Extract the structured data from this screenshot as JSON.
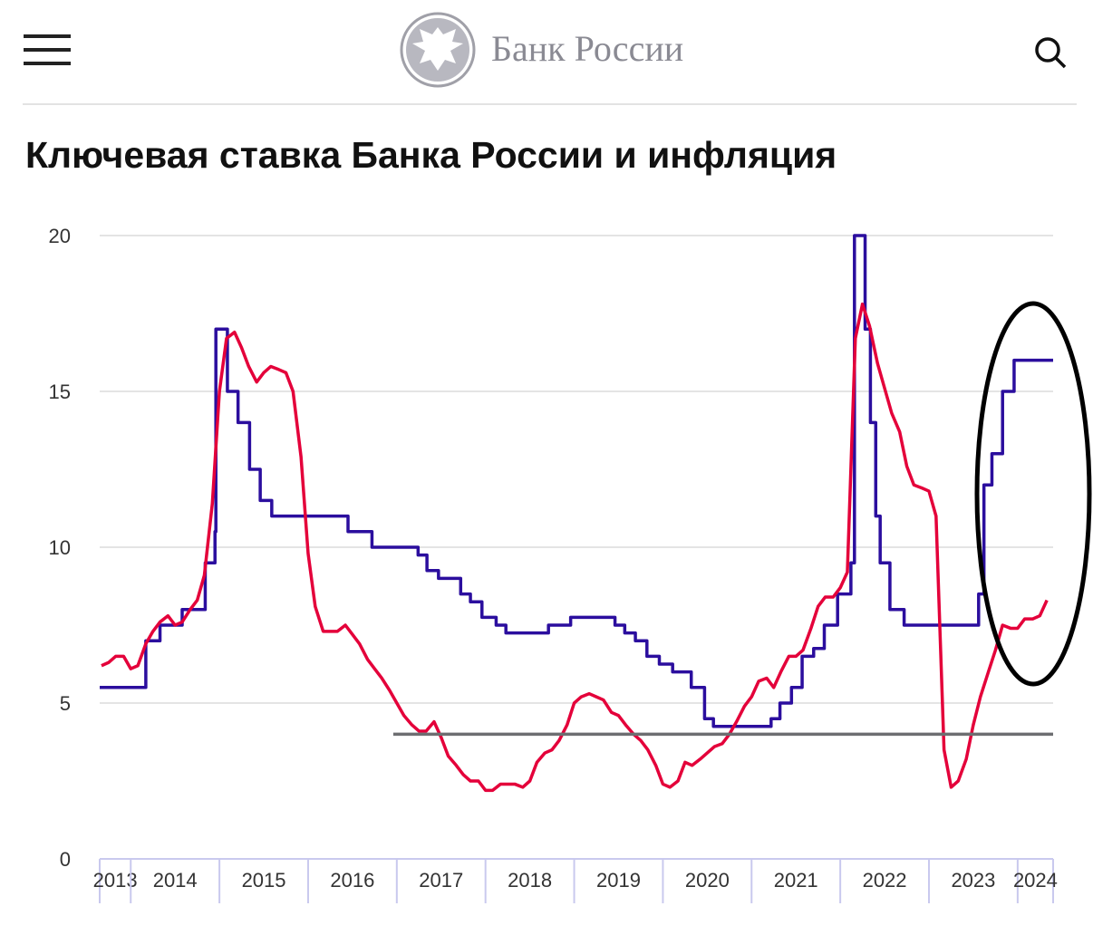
{
  "header": {
    "brand": "Банк России"
  },
  "chart_data": {
    "type": "line",
    "title": "Ключевая ставка Банка России и инфляция",
    "xlim": [
      2013.65,
      2024.4
    ],
    "xticks": [
      2013,
      2014,
      2015,
      2016,
      2017,
      2018,
      2019,
      2020,
      2021,
      2022,
      2023,
      2024
    ],
    "ylim": [
      0,
      20
    ],
    "yticks": [
      0,
      5,
      10,
      15,
      20
    ],
    "grid": true,
    "series": [
      {
        "color": "#2b0e9e",
        "step": true,
        "x": [
          2013.65,
          2014.17,
          2014.33,
          2014.58,
          2014.84,
          2014.95,
          2014.96,
          2015.09,
          2015.21,
          2015.34,
          2015.46,
          2015.59,
          2016.45,
          2016.72,
          2017.24,
          2017.34,
          2017.47,
          2017.72,
          2017.83,
          2017.96,
          2018.12,
          2018.23,
          2018.71,
          2018.96,
          2019.46,
          2019.57,
          2019.69,
          2019.82,
          2019.96,
          2020.11,
          2020.32,
          2020.47,
          2020.57,
          2021.22,
          2021.32,
          2021.45,
          2021.57,
          2021.7,
          2021.82,
          2021.97,
          2022.12,
          2022.16,
          2022.28,
          2022.34,
          2022.4,
          2022.45,
          2022.56,
          2022.72,
          2023.56,
          2023.62,
          2023.71,
          2023.83,
          2023.96,
          2024.4
        ],
        "values": [
          5.5,
          7,
          7.5,
          8,
          9.5,
          10.5,
          17,
          15,
          14,
          12.5,
          11.5,
          11,
          10.5,
          10,
          9.75,
          9.25,
          9,
          8.5,
          8.25,
          7.75,
          7.5,
          7.25,
          7.5,
          7.75,
          7.5,
          7.25,
          7,
          6.5,
          6.25,
          6,
          5.5,
          4.5,
          4.25,
          4.5,
          5,
          5.5,
          6.5,
          6.75,
          7.5,
          8.5,
          9.5,
          20,
          17,
          14,
          11,
          9.5,
          8,
          7.5,
          8.5,
          12,
          13,
          15,
          16,
          16
        ]
      },
      {
        "color": "#e4003a",
        "step": false,
        "x": [
          2013.67,
          2013.75,
          2013.83,
          2013.92,
          2014.0,
          2014.08,
          2014.17,
          2014.25,
          2014.33,
          2014.42,
          2014.5,
          2014.58,
          2014.67,
          2014.75,
          2014.83,
          2014.92,
          2015.0,
          2015.08,
          2015.17,
          2015.25,
          2015.33,
          2015.42,
          2015.5,
          2015.58,
          2015.67,
          2015.75,
          2015.83,
          2015.92,
          2016.0,
          2016.08,
          2016.17,
          2016.25,
          2016.33,
          2016.42,
          2016.5,
          2016.58,
          2016.67,
          2016.75,
          2016.83,
          2016.92,
          2017.0,
          2017.08,
          2017.17,
          2017.25,
          2017.33,
          2017.42,
          2017.5,
          2017.58,
          2017.67,
          2017.75,
          2017.83,
          2017.92,
          2018.0,
          2018.08,
          2018.17,
          2018.25,
          2018.33,
          2018.42,
          2018.5,
          2018.58,
          2018.67,
          2018.75,
          2018.83,
          2018.92,
          2019.0,
          2019.08,
          2019.17,
          2019.25,
          2019.33,
          2019.42,
          2019.5,
          2019.58,
          2019.67,
          2019.75,
          2019.83,
          2019.92,
          2020.0,
          2020.08,
          2020.17,
          2020.25,
          2020.33,
          2020.42,
          2020.5,
          2020.58,
          2020.67,
          2020.75,
          2020.83,
          2020.92,
          2021.0,
          2021.08,
          2021.17,
          2021.25,
          2021.33,
          2021.42,
          2021.5,
          2021.58,
          2021.67,
          2021.75,
          2021.83,
          2021.92,
          2022.0,
          2022.08,
          2022.17,
          2022.25,
          2022.33,
          2022.42,
          2022.5,
          2022.58,
          2022.67,
          2022.75,
          2022.83,
          2022.92,
          2023.0,
          2023.08,
          2023.17,
          2023.25,
          2023.33,
          2023.42,
          2023.5,
          2023.58,
          2023.67,
          2023.75,
          2023.83,
          2023.92,
          2024.0,
          2024.08,
          2024.17,
          2024.25,
          2024.33
        ],
        "values": [
          6.2,
          6.3,
          6.5,
          6.5,
          6.1,
          6.2,
          6.9,
          7.3,
          7.6,
          7.8,
          7.5,
          7.6,
          8.0,
          8.3,
          9.1,
          11.4,
          15.0,
          16.7,
          16.9,
          16.4,
          15.8,
          15.3,
          15.6,
          15.8,
          15.7,
          15.6,
          15.0,
          12.9,
          9.8,
          8.1,
          7.3,
          7.3,
          7.3,
          7.5,
          7.2,
          6.9,
          6.4,
          6.1,
          5.8,
          5.4,
          5.0,
          4.6,
          4.3,
          4.1,
          4.1,
          4.4,
          3.9,
          3.3,
          3.0,
          2.7,
          2.5,
          2.5,
          2.2,
          2.2,
          2.4,
          2.4,
          2.4,
          2.3,
          2.5,
          3.1,
          3.4,
          3.5,
          3.8,
          4.3,
          5.0,
          5.2,
          5.3,
          5.2,
          5.1,
          4.7,
          4.6,
          4.3,
          4.0,
          3.8,
          3.5,
          3.0,
          2.4,
          2.3,
          2.5,
          3.1,
          3.0,
          3.2,
          3.4,
          3.6,
          3.7,
          4.0,
          4.4,
          4.9,
          5.2,
          5.7,
          5.8,
          5.5,
          6.0,
          6.5,
          6.5,
          6.7,
          7.4,
          8.1,
          8.4,
          8.4,
          8.7,
          9.2,
          16.7,
          17.8,
          17.1,
          15.9,
          15.1,
          14.3,
          13.7,
          12.6,
          12.0,
          11.9,
          11.8,
          11.0,
          3.5,
          2.3,
          2.5,
          3.2,
          4.3,
          5.2,
          6.0,
          6.7,
          7.5,
          7.4,
          7.4,
          7.7,
          7.7,
          7.8,
          8.3
        ]
      },
      {
        "color": "#6d6e71",
        "step": false,
        "x": [
          2016.96,
          2024.4
        ],
        "values": [
          4,
          4
        ]
      }
    ]
  }
}
